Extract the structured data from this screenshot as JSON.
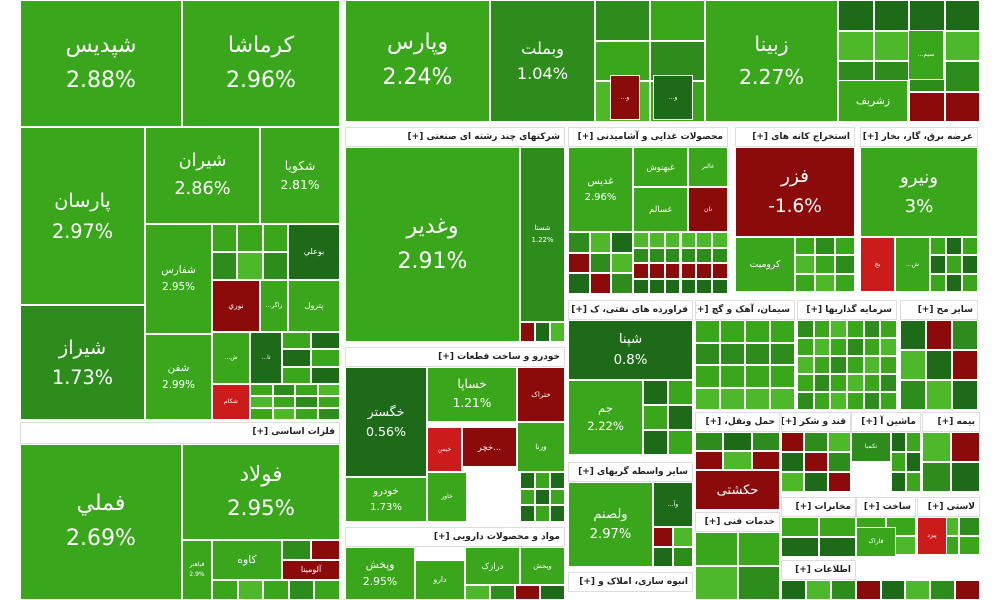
{
  "headers": [
    "شرکتهای چند رشته ای صنعتی [+]",
    "محصولات غذایی و آشامیدنی [+]",
    "استخراج کانه های [+]",
    "عرضه برق، گاز، بخار [+]",
    "فلزات اساسی [+]",
    "خودرو و ساخت قطعات [+]",
    "مواد و محصولات دارویی [+]",
    "فراورده های نفتی، ک [+]",
    "سایر واسطه گریهای [+]",
    "انبوه سازی، املاک و [+]",
    "سیمان، آهک و گچ [+]",
    "سرمایه گذاریها [+]",
    "سایر مح [+]",
    "حمل ونقل، [+]",
    "قند و شکر [+]",
    "ماشین آ [+]",
    "بیمه [+]",
    "خدمات فنی [+]",
    "مخابرات [+]",
    "ساخت [+]",
    "لاستی [+]",
    "اطلاعات [+]"
  ],
  "tiles": [
    {
      "label": "شپدیس",
      "change": "2.88%"
    },
    {
      "label": "کرماشا",
      "change": "2.96%"
    },
    {
      "label": "وپارس",
      "change": "2.24%"
    },
    {
      "label": "وبملت",
      "change": "1.04%"
    },
    {
      "label": "زبینا",
      "change": "2.27%"
    },
    {
      "label": "پارسان",
      "change": "2.97%"
    },
    {
      "label": "شیراز",
      "change": "1.73%"
    },
    {
      "label": "شیران",
      "change": "2.86%"
    },
    {
      "label": "شکویا",
      "change": "2.81%"
    },
    {
      "label": "شفارس",
      "change": "2.95%"
    },
    {
      "label": "شفن",
      "change": "2.99%"
    },
    {
      "label": "نوري"
    },
    {
      "label": "بوعلي"
    },
    {
      "label": "زاگر..."
    },
    {
      "label": "پترول"
    },
    {
      "label": "ش..."
    },
    {
      "label": "تا..."
    },
    {
      "label": "شکام"
    },
    {
      "label": "فولاد",
      "change": "2.95%"
    },
    {
      "label": "فملي",
      "change": "2.69%"
    },
    {
      "label": "کاوه"
    },
    {
      "label": "آلومينا"
    },
    {
      "label": "فباهنر",
      "change": "2.9%"
    },
    {
      "label": "وغدير",
      "change": "2.91%"
    },
    {
      "label": "شستا",
      "change": "1.22%"
    },
    {
      "label": "خگستر",
      "change": "0.56%"
    },
    {
      "label": "خساپا",
      "change": "1.21%"
    },
    {
      "label": "ختراک"
    },
    {
      "label": "خودرو",
      "change": "1.73%"
    },
    {
      "label": "خیمن"
    },
    {
      "label": "...خچر"
    },
    {
      "label": "ورنا"
    },
    {
      "label": "خاور"
    },
    {
      "label": "وپخش",
      "change": "2.95%"
    },
    {
      "label": "دارو"
    },
    {
      "label": "درازک"
    },
    {
      "label": "وپخش"
    },
    {
      "label": "غدیس",
      "change": "2.96%"
    },
    {
      "label": "غبهنوش"
    },
    {
      "label": "غالبر"
    },
    {
      "label": "غسالم"
    },
    {
      "label": "نان"
    },
    {
      "label": "شپنا",
      "change": "0.8%"
    },
    {
      "label": "جم",
      "change": "2.22%"
    },
    {
      "label": "ولصنم",
      "change": "2.97%"
    },
    {
      "label": "وآ..."
    },
    {
      "label": "فزر",
      "change": "-1.6%"
    },
    {
      "label": "کرومیت"
    },
    {
      "label": "ونیرو",
      "change": "3%"
    },
    {
      "label": "بج"
    },
    {
      "label": "ش..."
    },
    {
      "label": "زشریف"
    },
    {
      "label": "سیم..."
    },
    {
      "label": "حکشتی"
    },
    {
      "label": "تکمبا"
    },
    {
      "label": "فاراک"
    },
    {
      "label": "پیزد"
    },
    {
      "label": "و..."
    },
    {
      "label": "و..."
    }
  ]
}
